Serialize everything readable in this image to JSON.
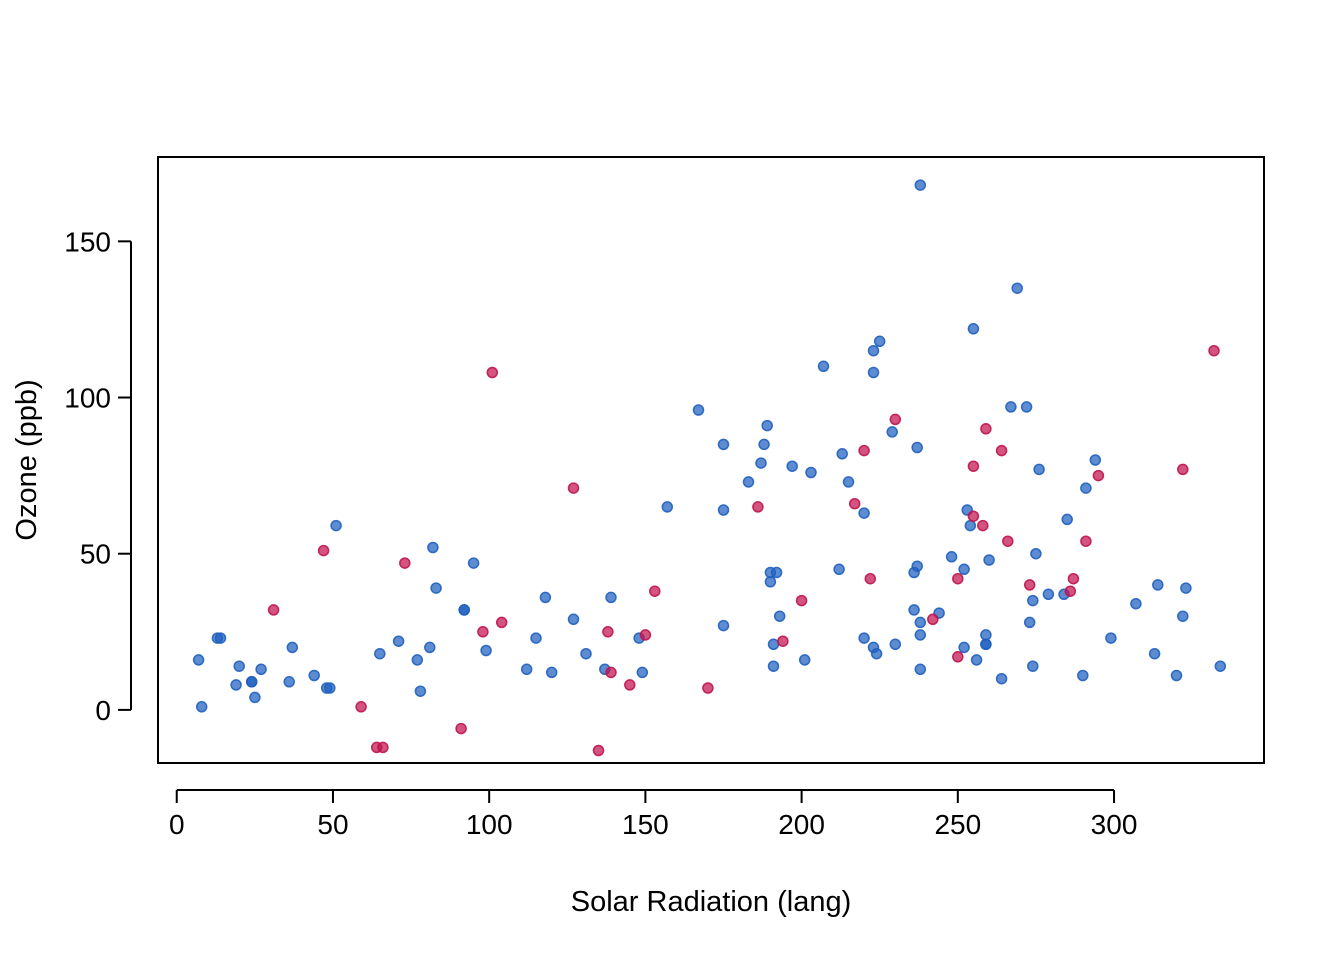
{
  "chart_data": {
    "type": "scatter",
    "title": "",
    "xlabel": "Solar Radiation (lang)",
    "ylabel": "Ozone (ppb)",
    "xlim": [
      -6,
      348
    ],
    "ylim": [
      -17,
      177
    ],
    "xticks": [
      "0",
      "50",
      "100",
      "150",
      "200",
      "250",
      "300"
    ],
    "yticks": [
      "0",
      "50",
      "100",
      "150"
    ],
    "grid": false,
    "legend": "none",
    "colors": {
      "observed": "#1f5fbf",
      "imputed": "#c0124d"
    },
    "series": [
      {
        "key": "observed",
        "color": "#1f5fbf",
        "points": [
          [
            7,
            16
          ],
          [
            8,
            1
          ],
          [
            13,
            23
          ],
          [
            14,
            23
          ],
          [
            19,
            8
          ],
          [
            20,
            14
          ],
          [
            24,
            9
          ],
          [
            24,
            9
          ],
          [
            25,
            4
          ],
          [
            27,
            13
          ],
          [
            36,
            9
          ],
          [
            37,
            20
          ],
          [
            44,
            11
          ],
          [
            48,
            7
          ],
          [
            49,
            7
          ],
          [
            51,
            59
          ],
          [
            65,
            18
          ],
          [
            71,
            22
          ],
          [
            77,
            16
          ],
          [
            78,
            6
          ],
          [
            81,
            20
          ],
          [
            82,
            52
          ],
          [
            83,
            39
          ],
          [
            92,
            32
          ],
          [
            92,
            32
          ],
          [
            95,
            47
          ],
          [
            99,
            19
          ],
          [
            112,
            13
          ],
          [
            115,
            23
          ],
          [
            118,
            36
          ],
          [
            120,
            12
          ],
          [
            127,
            29
          ],
          [
            131,
            18
          ],
          [
            137,
            13
          ],
          [
            139,
            36
          ],
          [
            148,
            23
          ],
          [
            149,
            12
          ],
          [
            157,
            65
          ],
          [
            167,
            96
          ],
          [
            175,
            85
          ],
          [
            175,
            64
          ],
          [
            175,
            27
          ],
          [
            183,
            73
          ],
          [
            187,
            79
          ],
          [
            188,
            85
          ],
          [
            189,
            91
          ],
          [
            190,
            44
          ],
          [
            190,
            41
          ],
          [
            191,
            21
          ],
          [
            191,
            14
          ],
          [
            192,
            44
          ],
          [
            193,
            30
          ],
          [
            197,
            78
          ],
          [
            201,
            16
          ],
          [
            203,
            76
          ],
          [
            207,
            110
          ],
          [
            212,
            45
          ],
          [
            213,
            82
          ],
          [
            215,
            73
          ],
          [
            220,
            63
          ],
          [
            220,
            23
          ],
          [
            223,
            115
          ],
          [
            223,
            108
          ],
          [
            223,
            20
          ],
          [
            224,
            18
          ],
          [
            225,
            118
          ],
          [
            229,
            89
          ],
          [
            230,
            21
          ],
          [
            236,
            32
          ],
          [
            236,
            44
          ],
          [
            237,
            84
          ],
          [
            237,
            46
          ],
          [
            238,
            168
          ],
          [
            238,
            28
          ],
          [
            238,
            24
          ],
          [
            238,
            13
          ],
          [
            244,
            31
          ],
          [
            248,
            49
          ],
          [
            252,
            45
          ],
          [
            252,
            20
          ],
          [
            253,
            64
          ],
          [
            254,
            59
          ],
          [
            255,
            122
          ],
          [
            256,
            16
          ],
          [
            259,
            24
          ],
          [
            259,
            21
          ],
          [
            259,
            21
          ],
          [
            260,
            48
          ],
          [
            264,
            10
          ],
          [
            267,
            97
          ],
          [
            269,
            135
          ],
          [
            272,
            97
          ],
          [
            273,
            28
          ],
          [
            274,
            35
          ],
          [
            274,
            14
          ],
          [
            275,
            50
          ],
          [
            276,
            77
          ],
          [
            279,
            37
          ],
          [
            284,
            37
          ],
          [
            285,
            61
          ],
          [
            290,
            11
          ],
          [
            291,
            71
          ],
          [
            294,
            80
          ],
          [
            299,
            23
          ],
          [
            307,
            34
          ],
          [
            313,
            18
          ],
          [
            314,
            40
          ],
          [
            320,
            11
          ],
          [
            322,
            30
          ],
          [
            323,
            39
          ],
          [
            334,
            14
          ]
        ]
      },
      {
        "key": "imputed",
        "color": "#c0124d",
        "points": [
          [
            31,
            32
          ],
          [
            47,
            51
          ],
          [
            59,
            1
          ],
          [
            64,
            -12
          ],
          [
            66,
            -12
          ],
          [
            73,
            47
          ],
          [
            91,
            -6
          ],
          [
            98,
            25
          ],
          [
            101,
            108
          ],
          [
            104,
            28
          ],
          [
            127,
            71
          ],
          [
            135,
            -13
          ],
          [
            138,
            25
          ],
          [
            139,
            12
          ],
          [
            145,
            8
          ],
          [
            150,
            24
          ],
          [
            153,
            38
          ],
          [
            170,
            7
          ],
          [
            186,
            65
          ],
          [
            194,
            22
          ],
          [
            200,
            35
          ],
          [
            217,
            66
          ],
          [
            220,
            83
          ],
          [
            222,
            42
          ],
          [
            230,
            93
          ],
          [
            242,
            29
          ],
          [
            250,
            17
          ],
          [
            250,
            42
          ],
          [
            255,
            78
          ],
          [
            255,
            62
          ],
          [
            258,
            59
          ],
          [
            259,
            90
          ],
          [
            264,
            83
          ],
          [
            266,
            54
          ],
          [
            273,
            40
          ],
          [
            286,
            38
          ],
          [
            287,
            42
          ],
          [
            291,
            54
          ],
          [
            295,
            75
          ],
          [
            322,
            77
          ],
          [
            332,
            115
          ]
        ]
      }
    ]
  }
}
